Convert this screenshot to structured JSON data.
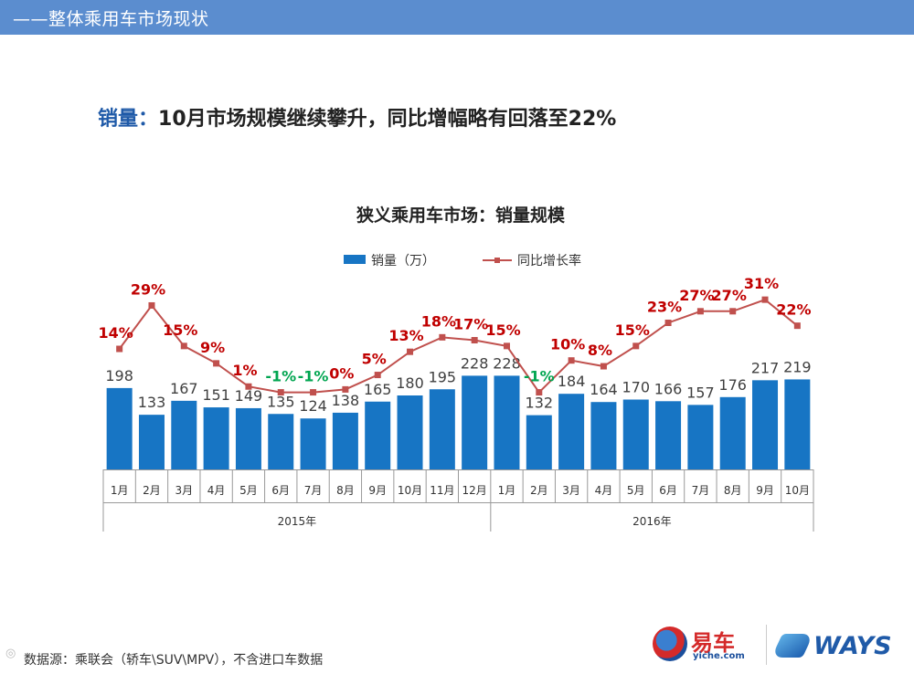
{
  "header": {
    "title": "——整体乘用车市场现状"
  },
  "headline": {
    "keyword": "销量：",
    "text": "10月市场规模继续攀升，同比增幅略有回落至22%"
  },
  "chart_data": {
    "type": "bar+line",
    "title": "狭义乘用车市场：销量规模",
    "legend": {
      "bar_label": "销量（万）",
      "line_label": "同比增长率",
      "placement": "top-center"
    },
    "months": [
      "1月",
      "2月",
      "3月",
      "4月",
      "5月",
      "6月",
      "7月",
      "8月",
      "9月",
      "10月",
      "11月",
      "12月",
      "1月",
      "2月",
      "3月",
      "4月",
      "5月",
      "6月",
      "7月",
      "8月",
      "9月",
      "10月"
    ],
    "years": [
      {
        "label": "2015年",
        "count": 12
      },
      {
        "label": "2016年",
        "count": 10
      }
    ],
    "series": [
      {
        "name": "销量（万）",
        "type": "bar",
        "values": [
          198,
          133,
          167,
          151,
          149,
          135,
          124,
          138,
          165,
          180,
          195,
          228,
          228,
          132,
          184,
          164,
          170,
          166,
          157,
          176,
          217,
          219
        ]
      },
      {
        "name": "同比增长率",
        "type": "line",
        "values": [
          14,
          29,
          15,
          9,
          1,
          -1,
          -1,
          0,
          5,
          13,
          18,
          17,
          15,
          -1,
          10,
          8,
          15,
          23,
          27,
          27,
          31,
          22
        ],
        "labels": [
          "14%",
          "29%",
          "15%",
          "9%",
          "1%",
          "-1%",
          "-1%",
          "0%",
          "5%",
          "13%",
          "18%",
          "17%",
          "15%",
          "-1%",
          "10%",
          "8%",
          "15%",
          "23%",
          "27%",
          "27%",
          "31%",
          "22%"
        ]
      }
    ],
    "ylim_bar": [
      0,
      400
    ],
    "ylim_line": [
      -20,
      40
    ],
    "colors": {
      "bar": "#1775c4",
      "line": "#c0504d",
      "pos_label": "#c00000",
      "neg_label": "#00a550",
      "bar_label": "#404040"
    }
  },
  "footer": {
    "note": "数据源：乘联会（轿车\\SUV\\MPV），不含进口车数据"
  },
  "logos": {
    "yiche_name": "易车",
    "yiche_url": "yiche.com",
    "ways": "WAYS"
  }
}
